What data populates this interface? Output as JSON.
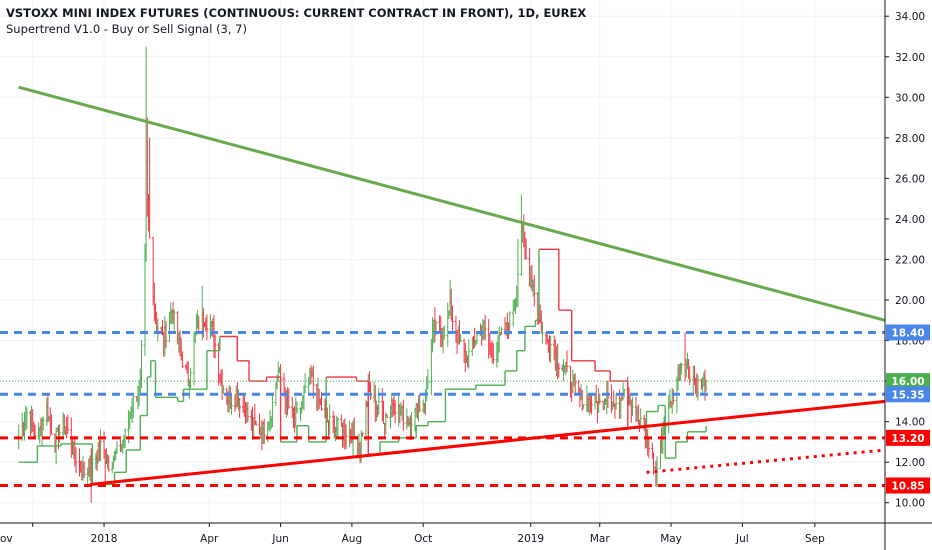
{
  "header": {
    "title": "VSTOXX MINI INDEX FUTURES (CONTINUOUS: CURRENT CONTRACT IN FRONT), 1D, EUREX",
    "indicator": "Supertrend V1.0 - Buy or Sell Signal (3, 7)"
  },
  "colors": {
    "up": "#4caf50",
    "down": "#f23645",
    "resistance_line": "#6aa84f",
    "support_line": "#ff0000",
    "blue_dashed": "#4a86e8",
    "red_dashed": "#ff0000",
    "last_price": "#4caf50"
  },
  "chart_data": {
    "type": "candlestick",
    "y_ticks": [
      "10.00",
      "12.00",
      "14.00",
      "16.00",
      "18.00",
      "20.00",
      "22.00",
      "24.00",
      "26.00",
      "28.00",
      "30.00",
      "32.00",
      "34.00"
    ],
    "ylim": [
      9,
      34.8
    ],
    "x_ticks": [
      {
        "label": "ov",
        "date": "2017-11-01"
      },
      {
        "label": "2018",
        "date": "2018-01-01"
      },
      {
        "label": "Apr",
        "date": "2018-04-01"
      },
      {
        "label": "Jun",
        "date": "2018-06-01"
      },
      {
        "label": "Aug",
        "date": "2018-08-01"
      },
      {
        "label": "Oct",
        "date": "2018-10-01"
      },
      {
        "label": "2019",
        "date": "2019-01-01"
      },
      {
        "label": "Mar",
        "date": "2019-03-01"
      },
      {
        "label": "May",
        "date": "2019-05-01"
      },
      {
        "label": "Jul",
        "date": "2019-07-01"
      },
      {
        "label": "Sep",
        "date": "2019-09-01"
      }
    ],
    "price_labels": [
      {
        "value": 18.4,
        "text": "18.40",
        "color": "#4a86e8"
      },
      {
        "value": 16.0,
        "text": "16.00",
        "color": "#4caf50"
      },
      {
        "value": 15.35,
        "text": "15.35",
        "color": "#4a86e8"
      },
      {
        "value": 13.2,
        "text": "13.20",
        "color": "#ff0000"
      },
      {
        "value": 10.85,
        "text": "10.85",
        "color": "#ff0000"
      }
    ],
    "last_price": 16.0,
    "lines": {
      "resistance_trend": {
        "from": {
          "date": "2017-10-20",
          "value": 30.5
        },
        "to": {
          "date": "2019-10-31",
          "value": 19.0
        }
      },
      "support_trend": {
        "from": {
          "date": "2017-12-20",
          "value": 10.9
        },
        "to": {
          "date": "2019-10-31",
          "value": 15.0
        }
      },
      "support_dotted": {
        "from": {
          "date": "2019-04-10",
          "value": 11.5
        },
        "to": {
          "date": "2019-10-31",
          "value": 12.6
        }
      },
      "h_dashed": [
        {
          "value": 18.4,
          "color": "blue"
        },
        {
          "value": 15.35,
          "color": "blue"
        },
        {
          "value": 13.2,
          "color": "red"
        },
        {
          "value": 10.85,
          "color": "red"
        }
      ]
    },
    "anchors": [
      [
        "2017-10-20",
        13.2
      ],
      [
        "2017-10-28",
        14.6
      ],
      [
        "2017-11-05",
        13.1
      ],
      [
        "2017-11-12",
        14.8
      ],
      [
        "2017-11-20",
        13.0
      ],
      [
        "2017-11-28",
        14.0
      ],
      [
        "2017-12-06",
        12.5
      ],
      [
        "2017-12-14",
        11.5
      ],
      [
        "2017-12-22",
        11.8
      ],
      [
        "2017-12-29",
        12.8
      ],
      [
        "2018-01-05",
        12.0
      ],
      [
        "2018-01-12",
        12.4
      ],
      [
        "2018-01-19",
        13.3
      ],
      [
        "2018-01-26",
        15.0
      ],
      [
        "2018-02-01",
        15.8
      ],
      [
        "2018-02-05",
        22.0
      ],
      [
        "2018-02-06",
        26.5
      ],
      [
        "2018-02-07",
        24.5
      ],
      [
        "2018-02-09",
        23.0
      ],
      [
        "2018-02-14",
        19.0
      ],
      [
        "2018-02-21",
        18.0
      ],
      [
        "2018-02-28",
        19.5
      ],
      [
        "2018-03-07",
        17.5
      ],
      [
        "2018-03-14",
        16.0
      ],
      [
        "2018-03-21",
        18.5
      ],
      [
        "2018-03-28",
        19.2
      ],
      [
        "2018-04-04",
        18.5
      ],
      [
        "2018-04-11",
        16.0
      ],
      [
        "2018-04-18",
        15.0
      ],
      [
        "2018-04-25",
        15.3
      ],
      [
        "2018-05-02",
        14.5
      ],
      [
        "2018-05-09",
        13.8
      ],
      [
        "2018-05-16",
        13.5
      ],
      [
        "2018-05-23",
        14.2
      ],
      [
        "2018-05-30",
        16.5
      ],
      [
        "2018-06-06",
        15.0
      ],
      [
        "2018-06-13",
        14.0
      ],
      [
        "2018-06-20",
        15.0
      ],
      [
        "2018-06-27",
        16.2
      ],
      [
        "2018-07-04",
        15.0
      ],
      [
        "2018-07-11",
        14.0
      ],
      [
        "2018-07-18",
        13.7
      ],
      [
        "2018-07-25",
        13.6
      ],
      [
        "2018-08-01",
        13.4
      ],
      [
        "2018-08-08",
        12.9
      ],
      [
        "2018-08-15",
        15.5
      ],
      [
        "2018-08-22",
        14.8
      ],
      [
        "2018-08-29",
        14.2
      ],
      [
        "2018-09-05",
        15.0
      ],
      [
        "2018-09-12",
        14.4
      ],
      [
        "2018-09-19",
        14.0
      ],
      [
        "2018-09-26",
        14.6
      ],
      [
        "2018-10-03",
        15.2
      ],
      [
        "2018-10-10",
        18.6
      ],
      [
        "2018-10-17",
        18.2
      ],
      [
        "2018-10-24",
        19.5
      ],
      [
        "2018-10-31",
        18.0
      ],
      [
        "2018-11-07",
        17.0
      ],
      [
        "2018-11-14",
        18.0
      ],
      [
        "2018-11-21",
        18.8
      ],
      [
        "2018-11-28",
        17.2
      ],
      [
        "2018-12-05",
        18.0
      ],
      [
        "2018-12-12",
        18.6
      ],
      [
        "2018-12-19",
        20.0
      ],
      [
        "2018-12-24",
        23.5
      ],
      [
        "2018-12-28",
        22.0
      ],
      [
        "2019-01-04",
        20.5
      ],
      [
        "2019-01-11",
        18.3
      ],
      [
        "2019-01-18",
        17.8
      ],
      [
        "2019-01-25",
        17.0
      ],
      [
        "2019-02-01",
        16.4
      ],
      [
        "2019-02-08",
        15.6
      ],
      [
        "2019-02-15",
        15.0
      ],
      [
        "2019-02-22",
        15.0
      ],
      [
        "2019-03-01",
        14.8
      ],
      [
        "2019-03-08",
        15.6
      ],
      [
        "2019-03-15",
        14.5
      ],
      [
        "2019-03-22",
        15.9
      ],
      [
        "2019-03-29",
        14.8
      ],
      [
        "2019-04-05",
        13.8
      ],
      [
        "2019-04-12",
        12.9
      ],
      [
        "2019-04-18",
        11.4
      ],
      [
        "2019-04-26",
        14.0
      ],
      [
        "2019-05-03",
        15.4
      ],
      [
        "2019-05-10",
        17.0
      ],
      [
        "2019-05-17",
        16.5
      ],
      [
        "2019-05-24",
        15.8
      ],
      [
        "2019-05-31",
        16.0
      ]
    ],
    "supertrend": [
      [
        "2017-10-20",
        12.0,
        "up"
      ],
      [
        "2017-11-05",
        12.8,
        "up"
      ],
      [
        "2017-11-25",
        12.9,
        "up"
      ],
      [
        "2017-12-22",
        10.9,
        "up"
      ],
      [
        "2018-01-10",
        11.5,
        "up"
      ],
      [
        "2018-01-20",
        12.6,
        "up"
      ],
      [
        "2018-02-01",
        14.3,
        "up"
      ],
      [
        "2018-02-07",
        16.2,
        "up"
      ],
      [
        "2018-02-10",
        17.0,
        "up"
      ],
      [
        "2018-02-14",
        15.2,
        "up"
      ],
      [
        "2018-03-05",
        15.0,
        "up"
      ],
      [
        "2018-03-10",
        15.6,
        "up"
      ],
      [
        "2018-03-30",
        17.5,
        "up"
      ],
      [
        "2018-04-10",
        18.2,
        "down"
      ],
      [
        "2018-04-25",
        17.0,
        "down"
      ],
      [
        "2018-05-05",
        16.0,
        "down"
      ],
      [
        "2018-05-20",
        16.2,
        "down"
      ],
      [
        "2018-06-01",
        13.0,
        "up"
      ],
      [
        "2018-06-15",
        13.8,
        "up"
      ],
      [
        "2018-06-25",
        13.0,
        "up"
      ],
      [
        "2018-07-10",
        16.2,
        "down"
      ],
      [
        "2018-08-05",
        16.0,
        "down"
      ],
      [
        "2018-08-15",
        12.4,
        "up"
      ],
      [
        "2018-08-25",
        13.0,
        "up"
      ],
      [
        "2018-09-10",
        13.2,
        "up"
      ],
      [
        "2018-09-25",
        13.8,
        "up"
      ],
      [
        "2018-10-05",
        14.0,
        "up"
      ],
      [
        "2018-10-20",
        15.6,
        "up"
      ],
      [
        "2018-11-15",
        15.8,
        "up"
      ],
      [
        "2018-12-10",
        16.5,
        "up"
      ],
      [
        "2018-12-20",
        17.5,
        "up"
      ],
      [
        "2018-12-27",
        18.7,
        "up"
      ],
      [
        "2019-01-05",
        19.0,
        "up"
      ],
      [
        "2019-01-08",
        22.5,
        "down"
      ],
      [
        "2019-01-25",
        19.5,
        "down"
      ],
      [
        "2019-02-05",
        17.0,
        "down"
      ],
      [
        "2019-02-25",
        16.5,
        "down"
      ],
      [
        "2019-03-10",
        16.0,
        "down"
      ],
      [
        "2019-03-25",
        13.7,
        "up"
      ],
      [
        "2019-04-10",
        14.5,
        "up"
      ],
      [
        "2019-04-20",
        14.8,
        "up"
      ],
      [
        "2019-04-26",
        12.2,
        "up"
      ],
      [
        "2019-05-05",
        13.0,
        "up"
      ],
      [
        "2019-05-15",
        13.5,
        "up"
      ],
      [
        "2019-05-31",
        13.8,
        "up"
      ]
    ]
  }
}
